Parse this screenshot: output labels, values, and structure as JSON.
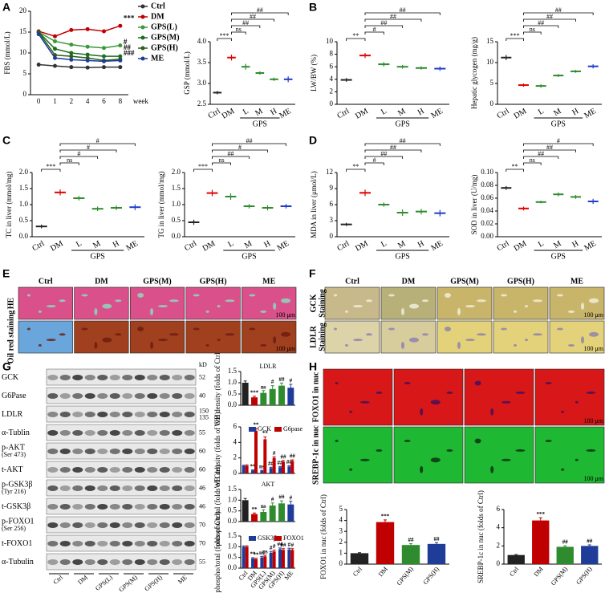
{
  "chart_data": [
    {
      "type": "line",
      "ylabel": "FBS (mmol/L)",
      "xlabel": "week",
      "categories": [
        "0",
        "1",
        "2",
        "4",
        "6",
        "8"
      ],
      "ylim": [
        0,
        20
      ],
      "yticks": [
        0,
        5,
        10,
        15,
        20
      ],
      "legend": "right",
      "annotations": [
        "***",
        "#",
        "##",
        "###"
      ],
      "series": [
        {
          "name": "Ctrl",
          "color": "#333333",
          "values": [
            7.2,
            6.9,
            6.6,
            6.5,
            6.6,
            6.6
          ]
        },
        {
          "name": "DM",
          "color": "#c00000",
          "values": [
            15.2,
            14,
            15.5,
            15.7,
            15.2,
            16.5
          ]
        },
        {
          "name": "GPS(L)",
          "color": "#3a9a3a",
          "values": [
            15,
            12.8,
            12,
            11.5,
            11.2,
            11.8
          ]
        },
        {
          "name": "GPS(M)",
          "color": "#1b6e20",
          "values": [
            15,
            11,
            10,
            9.6,
            9.2,
            9.2
          ]
        },
        {
          "name": "GPS(H)",
          "color": "#2c5e1a",
          "values": [
            15,
            9.5,
            9.2,
            8.8,
            8.2,
            8.5
          ]
        },
        {
          "name": "ME",
          "color": "#1f3c99",
          "values": [
            14.5,
            8.8,
            8.4,
            8.2,
            8.0,
            8.2
          ]
        }
      ]
    },
    {
      "type": "dot",
      "ylabel": "GSP (mmol/L)",
      "categories": [
        "Ctrl",
        "DM",
        "L",
        "M",
        "H",
        "ME"
      ],
      "group_label": "GPS",
      "values": [
        2.78,
        3.62,
        3.4,
        3.25,
        3.1,
        3.1
      ],
      "errors": [
        0.04,
        0.07,
        0.07,
        0.04,
        0.04,
        0.07
      ],
      "colors": [
        "#222222",
        "#e00000",
        "#2e8b2e",
        "#2e8b2e",
        "#2e8b2e",
        "#1f3cc9"
      ],
      "sig": [
        null,
        "***",
        "ns",
        "##",
        "##",
        "##"
      ],
      "ylim": [
        2.5,
        4.0
      ],
      "yticks": [
        2.5,
        {
          "value": 3,
          "label": "3.0"
        },
        3.5,
        {
          "value": 4,
          "label": "4.0"
        }
      ]
    },
    {
      "type": "dot",
      "ylabel": "LW/BW (%)",
      "categories": [
        "Ctrl",
        "DM",
        "L",
        "M",
        "H",
        "ME"
      ],
      "group_label": "GPS",
      "values": [
        3.9,
        7.8,
        6.4,
        6.0,
        5.8,
        5.7
      ],
      "errors": [
        0.3,
        0.4,
        0.35,
        0.3,
        0.25,
        0.35
      ],
      "colors": [
        "#222222",
        "#e00000",
        "#2e8b2e",
        "#2e8b2e",
        "#2e8b2e",
        "#1f3cc9"
      ],
      "sig": [
        null,
        "**",
        "#",
        "##",
        "##",
        "##"
      ],
      "ylim": [
        0,
        10
      ],
      "yticks": [
        0,
        2,
        4,
        6,
        8,
        10
      ]
    },
    {
      "type": "dot",
      "ylabel": "Hepatic glycogen (mg/g)",
      "categories": [
        "Ctrl",
        "DM",
        "L",
        "M",
        "H",
        "ME"
      ],
      "group_label": "GPS",
      "values": [
        11.2,
        4.6,
        4.4,
        6.9,
        7.9,
        9.1
      ],
      "errors": [
        0.6,
        0.4,
        0.4,
        0.35,
        0.35,
        0.5
      ],
      "colors": [
        "#222222",
        "#e00000",
        "#2e8b2e",
        "#2e8b2e",
        "#2e8b2e",
        "#1f3cc9"
      ],
      "sig": [
        null,
        "***",
        "ns",
        "##",
        "##",
        "##"
      ],
      "ylim": [
        0,
        15
      ],
      "yticks": [
        0,
        5,
        10,
        15
      ]
    },
    {
      "type": "dot",
      "ylabel": "TC in liver (mmol/mg)",
      "categories": [
        "Ctrl",
        "DM",
        "L",
        "M",
        "H",
        "ME"
      ],
      "group_label": "GPS",
      "values": [
        0.32,
        1.38,
        1.2,
        0.87,
        0.9,
        0.92
      ],
      "errors": [
        0.06,
        0.09,
        0.07,
        0.07,
        0.07,
        0.09
      ],
      "colors": [
        "#222222",
        "#e00000",
        "#2e8b2e",
        "#2e8b2e",
        "#2e8b2e",
        "#1f3cc9"
      ],
      "sig": [
        null,
        "***",
        "ns",
        "#",
        "#",
        "#"
      ],
      "ylim": [
        0,
        2
      ],
      "yticks": [
        {
          "value": 0,
          "label": "0.0"
        },
        0.5,
        {
          "value": 1,
          "label": "1.0"
        },
        1.5,
        {
          "value": 2,
          "label": "2.0"
        }
      ]
    },
    {
      "type": "dot",
      "ylabel": "TG in liver (mmol/mg)",
      "categories": [
        "Ctrl",
        "DM",
        "L",
        "M",
        "H",
        "ME"
      ],
      "group_label": "GPS",
      "values": [
        0.45,
        1.36,
        1.25,
        0.95,
        0.9,
        0.95
      ],
      "errors": [
        0.08,
        0.1,
        0.1,
        0.07,
        0.08,
        0.07
      ],
      "colors": [
        "#222222",
        "#e00000",
        "#2e8b2e",
        "#2e8b2e",
        "#2e8b2e",
        "#1f3cc9"
      ],
      "sig": [
        null,
        "***",
        "ns",
        "##",
        "#",
        "##"
      ],
      "ylim": [
        0,
        2
      ],
      "yticks": [
        {
          "value": 0,
          "label": "0.0"
        },
        0.5,
        {
          "value": 1,
          "label": "1.0"
        },
        1.5,
        {
          "value": 2,
          "label": "2.0"
        }
      ]
    },
    {
      "type": "dot",
      "ylabel": "MDA in liver (μmol/L)",
      "categories": [
        "Ctrl",
        "DM",
        "L",
        "M",
        "H",
        "ME"
      ],
      "group_label": "GPS",
      "values": [
        2.3,
        8.2,
        6.0,
        4.5,
        4.7,
        4.4
      ],
      "errors": [
        0.3,
        0.6,
        0.4,
        0.6,
        0.5,
        0.6
      ],
      "colors": [
        "#222222",
        "#e00000",
        "#2e8b2e",
        "#2e8b2e",
        "#2e8b2e",
        "#1f3cc9"
      ],
      "sig": [
        null,
        "**",
        "#",
        "##",
        "##",
        "##"
      ],
      "ylim": [
        0,
        12
      ],
      "yticks": [
        0,
        3,
        6,
        9,
        12
      ]
    },
    {
      "type": "dot",
      "ylabel": "SOD in liver (U/mg)",
      "categories": [
        "Ctrl",
        "DM",
        "L",
        "M",
        "H",
        "ME"
      ],
      "group_label": "GPS",
      "values": [
        0.076,
        0.044,
        0.054,
        0.066,
        0.062,
        0.055
      ],
      "errors": [
        0.003,
        0.003,
        0.002,
        0.003,
        0.003,
        0.004
      ],
      "colors": [
        "#222222",
        "#e00000",
        "#2e8b2e",
        "#2e8b2e",
        "#2e8b2e",
        "#1f3cc9"
      ],
      "sig": [
        null,
        "**",
        "ns",
        "##",
        "##",
        "#"
      ],
      "ylim": [
        0,
        0.1
      ],
      "yticks": [
        {
          "value": 0,
          "label": "0.00"
        },
        {
          "value": 0.02,
          "label": "0.02"
        },
        {
          "value": 0.04,
          "label": "0.04"
        },
        {
          "value": 0.06,
          "label": "0.06"
        },
        {
          "value": 0.08,
          "label": "0.08"
        },
        {
          "value": 0.1,
          "label": "0.10"
        }
      ]
    },
    {
      "type": "bar",
      "title": "LDLR",
      "ylabel": "WB density (folds of Ctrl)",
      "values": [
        1.0,
        0.35,
        0.55,
        0.72,
        0.87,
        0.78
      ],
      "errors": [
        0.08,
        0.05,
        0.1,
        0.15,
        0.12,
        0.15
      ],
      "colors": [
        "#222222",
        "#c00000",
        "#2e8b2e",
        "#2e8b2e",
        "#2e8b2e",
        "#1f3c99"
      ],
      "sig": [
        null,
        "***",
        "ns",
        "#",
        "##",
        "#"
      ],
      "ylim": [
        0,
        1.5
      ],
      "yticks": [
        {
          "value": 0,
          "label": "0.0"
        },
        0.5,
        {
          "value": 1,
          "label": "1.0"
        },
        1.5
      ]
    },
    {
      "type": "bar",
      "ylabel": "WB density (folds of Ctrl)",
      "ylim": [
        0,
        6
      ],
      "yticks": [
        0,
        2,
        4,
        6
      ],
      "series": [
        {
          "name": "GCK",
          "color": "#1f3c99",
          "values": [
            1,
            0.4,
            0.35,
            0.7,
            0.8,
            0.9
          ],
          "errors": [
            0.05,
            0.05,
            0.05,
            0.1,
            0.1,
            0.1
          ],
          "sig": [
            null,
            "**",
            "ns",
            "##",
            "##",
            "##"
          ]
        },
        {
          "name": "G6pase",
          "color": "#c00000",
          "values": [
            1,
            5.5,
            4.4,
            2.0,
            1.5,
            1.6
          ],
          "errors": [
            0.1,
            0.3,
            0.3,
            0.15,
            0.15,
            0.15
          ],
          "sig": [
            null,
            "**",
            "**",
            "#",
            "##",
            "##"
          ]
        }
      ]
    },
    {
      "type": "bar",
      "title": "AKT",
      "ylabel": "phospho/total (folds of Ctrl)",
      "values": [
        1.0,
        0.35,
        0.45,
        0.75,
        0.85,
        0.8
      ],
      "errors": [
        0.08,
        0.05,
        0.1,
        0.12,
        0.12,
        0.15
      ],
      "colors": [
        "#222222",
        "#c00000",
        "#2e8b2e",
        "#2e8b2e",
        "#2e8b2e",
        "#1f3c99"
      ],
      "sig": [
        null,
        "**",
        "ns",
        "#",
        "##",
        "#"
      ],
      "ylim": [
        0,
        1.5
      ],
      "yticks": [
        {
          "value": 0,
          "label": "0.0"
        },
        0.5,
        {
          "value": 1,
          "label": "1.0"
        },
        1.5
      ]
    },
    {
      "type": "bar",
      "ylabel": "phospho/total (folds of Ctrl)",
      "categories": [
        "Ctrl",
        "DM",
        "GPS(L)",
        "GPS(M)",
        "GPS(H)",
        "ME"
      ],
      "ylim": [
        0,
        1.5
      ],
      "yticks": [
        {
          "value": 0,
          "label": "0.0"
        },
        0.5,
        {
          "value": 1,
          "label": "1.0"
        },
        1.5
      ],
      "series": [
        {
          "name": "GSK3β",
          "color": "#1f3c99",
          "values": [
            1,
            0.45,
            0.5,
            0.72,
            0.88,
            0.87
          ],
          "errors": [
            0.04,
            0.04,
            0.05,
            0.06,
            0.06,
            0.06
          ],
          "sig": [
            null,
            "**",
            "ns",
            "#",
            "##",
            "#"
          ]
        },
        {
          "name": "FOXO1",
          "color": "#c00000",
          "values": [
            1,
            0.42,
            0.55,
            0.78,
            0.85,
            0.85
          ],
          "errors": [
            0.04,
            0.04,
            0.05,
            0.06,
            0.06,
            0.06
          ],
          "sig": [
            null,
            "**",
            "ns",
            "#",
            "##",
            "#"
          ]
        }
      ]
    },
    {
      "type": "bar",
      "ylabel": "FOXO1 in nuc (folds of Ctrl)",
      "categories": [
        "Ctrl",
        "DM",
        "GPS(M)",
        "GPS(H)"
      ],
      "values": [
        1,
        3.85,
        1.75,
        1.85
      ],
      "errors": [
        0.05,
        0.2,
        0.12,
        0.12
      ],
      "colors": [
        "#222222",
        "#c00000",
        "#2e8b2e",
        "#1f3c99"
      ],
      "sig": [
        null,
        "***",
        "##",
        "##"
      ],
      "ylim": [
        0,
        5
      ],
      "yticks": [
        0,
        1,
        2,
        3,
        4,
        5
      ]
    },
    {
      "type": "bar",
      "ylabel": "SREBP-1c in nuc (folds of Ctrl)",
      "categories": [
        "Ctrl",
        "DM",
        "GPS(M)",
        "GPS(H)"
      ],
      "values": [
        1,
        4.8,
        1.9,
        2.0
      ],
      "errors": [
        0.05,
        0.3,
        0.12,
        0.12
      ],
      "colors": [
        "#222222",
        "#c00000",
        "#2e8b2e",
        "#1f3c99"
      ],
      "sig": [
        null,
        "***",
        "##",
        "##"
      ],
      "ylim": [
        0,
        6
      ],
      "yticks": [
        0,
        2,
        4,
        6
      ]
    }
  ],
  "figure": {
    "panel_letters": [
      "A",
      "B",
      "C",
      "D",
      "E",
      "F",
      "G",
      "H"
    ],
    "E": {
      "columns": [
        "Ctrl",
        "DM",
        "GPS(M)",
        "GPS(H)",
        "ME"
      ],
      "rows": [
        [
          "HE"
        ],
        [
          "Oil red staining"
        ]
      ],
      "scale_bar": "100 μm"
    },
    "F": {
      "columns": [
        "Ctrl",
        "DM",
        "GPS(M)",
        "GPS(H)",
        "ME"
      ],
      "rows": [
        [
          "GCK",
          "Staining"
        ],
        [
          "LDLR",
          "Staining"
        ]
      ],
      "scale_bar": "100 μm"
    },
    "G": {
      "kd_header": "kD",
      "lanes": [
        "Ctrl",
        "DM",
        "GPS(L)",
        "GPS(M)",
        "GPS(H)",
        "ME"
      ],
      "blots": [
        {
          "label": [
            "GCK"
          ],
          "kd": [
            "52"
          ]
        },
        {
          "label": [
            "G6Pase"
          ],
          "kd": [
            "40"
          ]
        },
        {
          "label": [
            "LDLR"
          ],
          "kd": [
            "150",
            "135"
          ]
        },
        {
          "label": [
            "α-Tublin"
          ],
          "kd": [
            "55"
          ]
        },
        {
          "label": [
            "p-AKT",
            "(Ser 473)"
          ],
          "kd": [
            "60"
          ]
        },
        {
          "label": [
            "t-AKT"
          ],
          "kd": [
            "60"
          ]
        },
        {
          "label": [
            "p-GSK3β",
            "(Tyr 216)"
          ],
          "kd": [
            "46"
          ]
        },
        {
          "label": [
            "t-GSK3β"
          ],
          "kd": [
            "46"
          ]
        },
        {
          "label": [
            "p-FOXO1",
            "(Ser 256)"
          ],
          "kd": [
            "70"
          ]
        },
        {
          "label": [
            "t-FOXO1"
          ],
          "kd": [
            "70"
          ]
        },
        {
          "label": [
            "α-Tubulin"
          ],
          "kd": [
            "55"
          ]
        }
      ]
    },
    "H": {
      "rows": [
        [
          "FOXO1 in nuc"
        ],
        [
          "SREBP-1c in nuc"
        ]
      ],
      "scale_bar": "100 μm"
    }
  }
}
